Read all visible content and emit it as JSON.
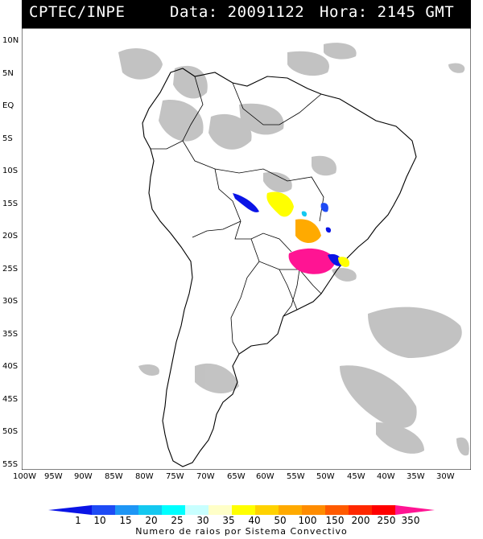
{
  "header": {
    "source": "CPTEC/INPE",
    "date_label": "Data: 20091122",
    "time_label": "Hora: 2145 GMT"
  },
  "lat_labels": [
    "10N",
    "5N",
    "EQ",
    "5S",
    "10S",
    "15S",
    "20S",
    "25S",
    "30S",
    "35S",
    "40S",
    "45S",
    "50S",
    "55S"
  ],
  "lon_labels": [
    "100W",
    "95W",
    "90W",
    "85W",
    "80W",
    "75W",
    "70W",
    "65W",
    "60W",
    "55W",
    "50W",
    "45W",
    "40W",
    "35W",
    "30W"
  ],
  "legend": {
    "values": [
      "1",
      "10",
      "15",
      "20",
      "25",
      "30",
      "35",
      "40",
      "50",
      "100",
      "150",
      "200",
      "250",
      "350"
    ],
    "colors": [
      "#0a14e6",
      "#1e4bf5",
      "#1e96f5",
      "#14c8f0",
      "#00ffff",
      "#c8ffff",
      "#ffffc8",
      "#ffff00",
      "#ffd200",
      "#ffaa00",
      "#ff8c00",
      "#ff5a00",
      "#ff2800",
      "#ff0000",
      "#ff1493"
    ],
    "caption": "Numero de raios por Sistema Convectivo"
  }
}
